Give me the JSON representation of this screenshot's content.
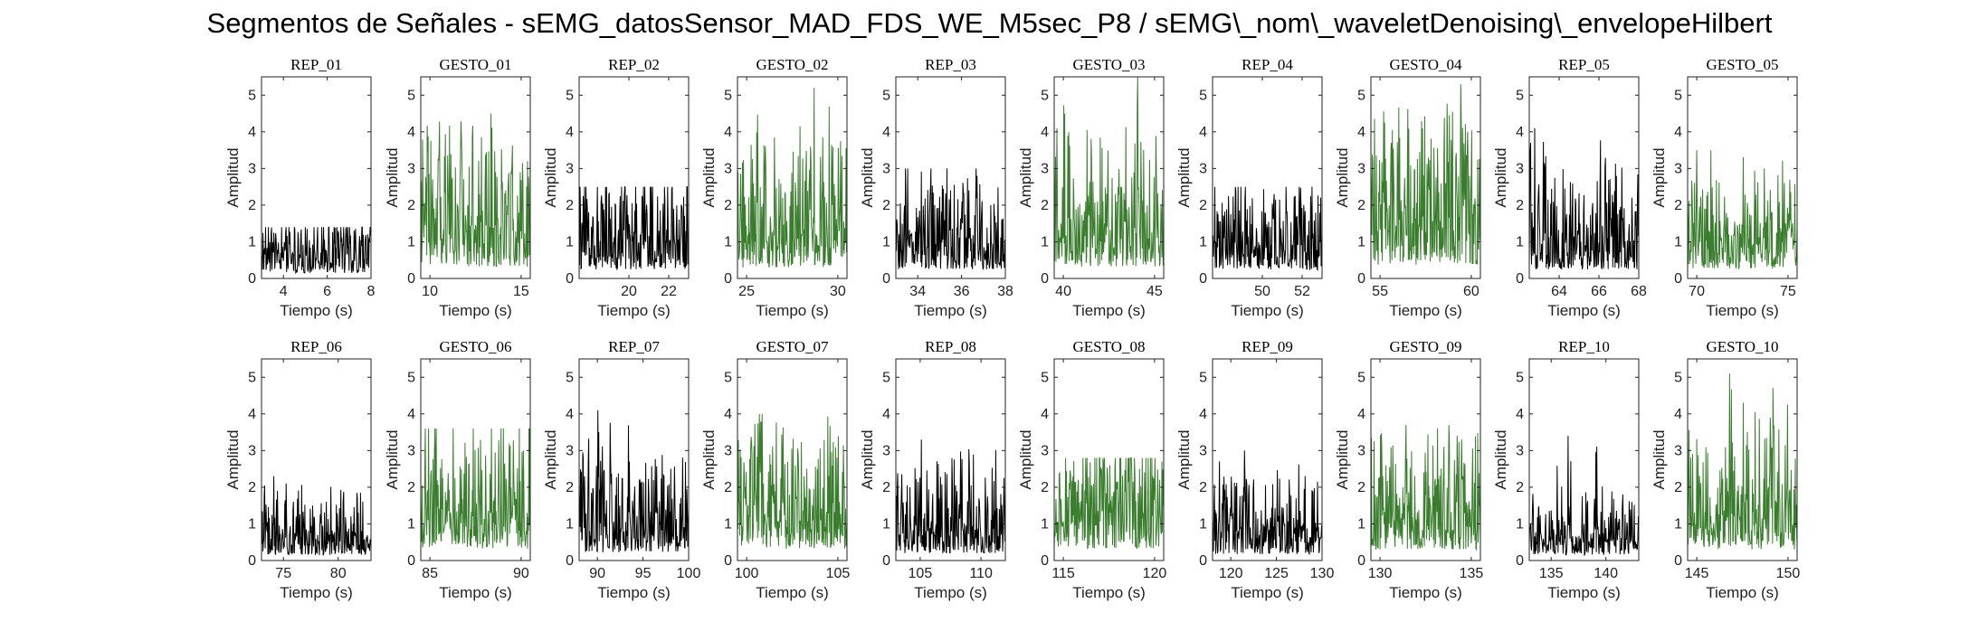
{
  "figure_title": "Segmentos de Señales - sEMG_datosSensor_MAD_FDS_WE_M5sec_P8 / sEMG\\_nom\\_waveletDenoising\\_envelopeHilbert",
  "colors": {
    "rep": "#000000",
    "gesto": "#3a7d2e",
    "axis": "#222222"
  },
  "chart_data": [
    {
      "type": "line",
      "title": "REP_01",
      "xlabel": "Tiempo (s)",
      "ylabel": "Amplitud",
      "xlim": [
        3,
        8
      ],
      "ylim": [
        0,
        5.5
      ],
      "xticks": [
        4,
        6,
        8
      ],
      "yticks": [
        0,
        1,
        2,
        3,
        4,
        5
      ],
      "series": [
        {
          "kind": "rep",
          "mean": 0.6,
          "max": 1.4
        }
      ]
    },
    {
      "type": "line",
      "title": "GESTO_01",
      "xlabel": "Tiempo (s)",
      "ylabel": "Amplitud",
      "xlim": [
        9.5,
        15.5
      ],
      "ylim": [
        0,
        5.5
      ],
      "xticks": [
        10,
        15
      ],
      "yticks": [
        0,
        1,
        2,
        3,
        4,
        5
      ],
      "series": [
        {
          "kind": "gesto",
          "mean": 1.3,
          "max": 4.5
        }
      ]
    },
    {
      "type": "line",
      "title": "REP_02",
      "xlabel": "Tiempo (s)",
      "ylabel": "Amplitud",
      "xlim": [
        17.5,
        23
      ],
      "ylim": [
        0,
        5.5
      ],
      "xticks": [
        20,
        22
      ],
      "yticks": [
        0,
        1,
        2,
        3,
        4,
        5
      ],
      "series": [
        {
          "kind": "rep",
          "mean": 1.0,
          "max": 2.5
        }
      ]
    },
    {
      "type": "line",
      "title": "GESTO_02",
      "xlabel": "Tiempo (s)",
      "ylabel": "Amplitud",
      "xlim": [
        24.5,
        30.5
      ],
      "ylim": [
        0,
        5.5
      ],
      "xticks": [
        25,
        30
      ],
      "yticks": [
        0,
        1,
        2,
        3,
        4,
        5
      ],
      "series": [
        {
          "kind": "gesto",
          "mean": 1.2,
          "max": 5.2
        }
      ]
    },
    {
      "type": "line",
      "title": "REP_03",
      "xlabel": "Tiempo (s)",
      "ylabel": "Amplitud",
      "xlim": [
        33,
        38
      ],
      "ylim": [
        0,
        5.5
      ],
      "xticks": [
        34,
        36,
        38
      ],
      "yticks": [
        0,
        1,
        2,
        3,
        4,
        5
      ],
      "series": [
        {
          "kind": "rep",
          "mean": 1.0,
          "max": 3.0
        }
      ]
    },
    {
      "type": "line",
      "title": "GESTO_03",
      "xlabel": "Tiempo (s)",
      "ylabel": "Amplitud",
      "xlim": [
        39.5,
        45.5
      ],
      "ylim": [
        0,
        5.5
      ],
      "xticks": [
        40,
        45
      ],
      "yticks": [
        0,
        1,
        2,
        3,
        4,
        5
      ],
      "series": [
        {
          "kind": "gesto",
          "mean": 1.3,
          "max": 5.5
        }
      ]
    },
    {
      "type": "line",
      "title": "REP_04",
      "xlabel": "Tiempo (s)",
      "ylabel": "Amplitud",
      "xlim": [
        47.5,
        53
      ],
      "ylim": [
        0,
        5.5
      ],
      "xticks": [
        50,
        52
      ],
      "yticks": [
        0,
        1,
        2,
        3,
        4,
        5
      ],
      "series": [
        {
          "kind": "rep",
          "mean": 0.9,
          "max": 2.5
        }
      ]
    },
    {
      "type": "line",
      "title": "GESTO_04",
      "xlabel": "Tiempo (s)",
      "ylabel": "Amplitud",
      "xlim": [
        54.5,
        60.5
      ],
      "ylim": [
        0,
        5.5
      ],
      "xticks": [
        55,
        60
      ],
      "yticks": [
        0,
        1,
        2,
        3,
        4,
        5
      ],
      "series": [
        {
          "kind": "gesto",
          "mean": 1.5,
          "max": 5.3
        }
      ]
    },
    {
      "type": "line",
      "title": "REP_05",
      "xlabel": "Tiempo (s)",
      "ylabel": "Amplitud",
      "xlim": [
        62.5,
        68
      ],
      "ylim": [
        0,
        5.5
      ],
      "xticks": [
        64,
        66,
        68
      ],
      "yticks": [
        0,
        1,
        2,
        3,
        4,
        5
      ],
      "series": [
        {
          "kind": "rep",
          "mean": 1.0,
          "max": 4.1
        }
      ]
    },
    {
      "type": "line",
      "title": "GESTO_05",
      "xlabel": "Tiempo (s)",
      "ylabel": "Amplitud",
      "xlim": [
        69.5,
        75.5
      ],
      "ylim": [
        0,
        5.5
      ],
      "xticks": [
        70,
        75
      ],
      "yticks": [
        0,
        1,
        2,
        3,
        4,
        5
      ],
      "series": [
        {
          "kind": "gesto",
          "mean": 1.1,
          "max": 3.5
        }
      ]
    },
    {
      "type": "line",
      "title": "REP_06",
      "xlabel": "Tiempo (s)",
      "ylabel": "Amplitud",
      "xlim": [
        73,
        83
      ],
      "ylim": [
        0,
        5.5
      ],
      "xticks": [
        75,
        80
      ],
      "yticks": [
        0,
        1,
        2,
        3,
        4,
        5
      ],
      "series": [
        {
          "kind": "rep",
          "mean": 0.6,
          "max": 2.3
        }
      ]
    },
    {
      "type": "line",
      "title": "GESTO_06",
      "xlabel": "Tiempo (s)",
      "ylabel": "Amplitud",
      "xlim": [
        84.5,
        90.5
      ],
      "ylim": [
        0,
        5.5
      ],
      "xticks": [
        85,
        90
      ],
      "yticks": [
        0,
        1,
        2,
        3,
        4,
        5
      ],
      "series": [
        {
          "kind": "gesto",
          "mean": 1.3,
          "max": 3.6
        }
      ]
    },
    {
      "type": "line",
      "title": "REP_07",
      "xlabel": "Tiempo (s)",
      "ylabel": "Amplitud",
      "xlim": [
        88,
        100
      ],
      "ylim": [
        0,
        5.5
      ],
      "xticks": [
        90,
        95,
        100
      ],
      "yticks": [
        0,
        1,
        2,
        3,
        4,
        5
      ],
      "series": [
        {
          "kind": "rep",
          "mean": 0.9,
          "max": 4.1
        }
      ]
    },
    {
      "type": "line",
      "title": "GESTO_07",
      "xlabel": "Tiempo (s)",
      "ylabel": "Amplitud",
      "xlim": [
        99.5,
        105.5
      ],
      "ylim": [
        0,
        5.5
      ],
      "xticks": [
        100,
        105
      ],
      "yticks": [
        0,
        1,
        2,
        3,
        4,
        5
      ],
      "series": [
        {
          "kind": "gesto",
          "mean": 1.3,
          "max": 4.0
        }
      ]
    },
    {
      "type": "line",
      "title": "REP_08",
      "xlabel": "Tiempo (s)",
      "ylabel": "Amplitud",
      "xlim": [
        103,
        112
      ],
      "ylim": [
        0,
        5.5
      ],
      "xticks": [
        105,
        110
      ],
      "yticks": [
        0,
        1,
        2,
        3,
        4,
        5
      ],
      "series": [
        {
          "kind": "rep",
          "mean": 0.8,
          "max": 3.3
        }
      ]
    },
    {
      "type": "line",
      "title": "GESTO_08",
      "xlabel": "Tiempo (s)",
      "ylabel": "Amplitud",
      "xlim": [
        114.5,
        120.5
      ],
      "ylim": [
        0,
        5.5
      ],
      "xticks": [
        115,
        120
      ],
      "yticks": [
        0,
        1,
        2,
        3,
        4,
        5
      ],
      "series": [
        {
          "kind": "gesto",
          "mean": 1.3,
          "max": 2.8
        }
      ]
    },
    {
      "type": "line",
      "title": "REP_09",
      "xlabel": "Tiempo (s)",
      "ylabel": "Amplitud",
      "xlim": [
        118,
        130
      ],
      "ylim": [
        0,
        5.5
      ],
      "xticks": [
        120,
        125,
        130
      ],
      "yticks": [
        0,
        1,
        2,
        3,
        4,
        5
      ],
      "series": [
        {
          "kind": "rep",
          "mean": 0.7,
          "max": 3.0
        }
      ]
    },
    {
      "type": "line",
      "title": "GESTO_09",
      "xlabel": "Tiempo (s)",
      "ylabel": "Amplitud",
      "xlim": [
        129.5,
        135.5
      ],
      "ylim": [
        0,
        5.5
      ],
      "xticks": [
        130,
        135
      ],
      "yticks": [
        0,
        1,
        2,
        3,
        4,
        5
      ],
      "series": [
        {
          "kind": "gesto",
          "mean": 1.2,
          "max": 3.7
        }
      ]
    },
    {
      "type": "line",
      "title": "REP_10",
      "xlabel": "Tiempo (s)",
      "ylabel": "Amplitud",
      "xlim": [
        133,
        143
      ],
      "ylim": [
        0,
        5.5
      ],
      "xticks": [
        135,
        140
      ],
      "yticks": [
        0,
        1,
        2,
        3,
        4,
        5
      ],
      "series": [
        {
          "kind": "rep",
          "mean": 0.6,
          "max": 3.4
        }
      ]
    },
    {
      "type": "line",
      "title": "GESTO_10",
      "xlabel": "Tiempo (s)",
      "ylabel": "Amplitud",
      "xlim": [
        144.5,
        150.5
      ],
      "ylim": [
        0,
        5.5
      ],
      "xticks": [
        145,
        150
      ],
      "yticks": [
        0,
        1,
        2,
        3,
        4,
        5
      ],
      "series": [
        {
          "kind": "gesto",
          "mean": 1.2,
          "max": 5.1
        }
      ]
    }
  ]
}
